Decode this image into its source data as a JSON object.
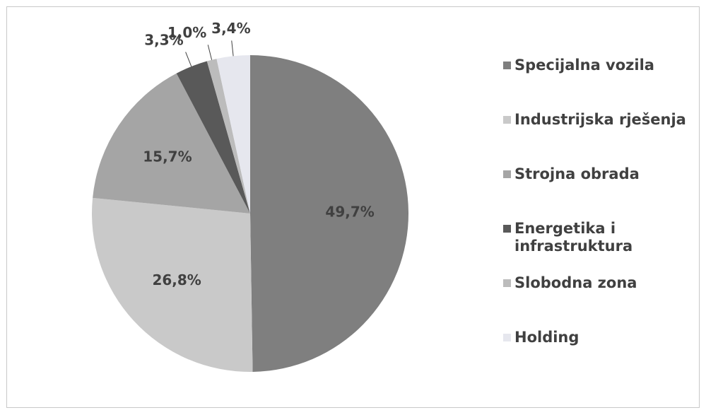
{
  "chart_data": {
    "type": "pie",
    "categories": [
      "Specijalna vozila",
      "Industrijska rješenja",
      "Strojna obrada",
      "Energetika i infrastruktura",
      "Slobodna zona",
      "Holding"
    ],
    "values": [
      49.7,
      26.8,
      15.7,
      3.3,
      1.0,
      3.4
    ],
    "value_labels": [
      "49,7%",
      "26,8%",
      "15,7%",
      "3,3%",
      "1,0%",
      "3,4%"
    ],
    "colors": [
      "#7f7f7f",
      "#c9c9c9",
      "#a5a5a5",
      "#595959",
      "#bcbcbc",
      "#e6e7ee"
    ],
    "legend": "right"
  }
}
